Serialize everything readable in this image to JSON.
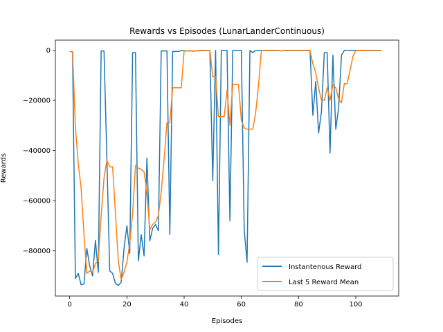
{
  "chart_data": {
    "type": "line",
    "title": "Rewards vs Episodes (LunarLanderContinuous)",
    "xlabel": "Episodes",
    "ylabel": "Rewards",
    "xlim": [
      -5,
      115
    ],
    "ylim": [
      -98000,
      4000
    ],
    "xticks": [
      0,
      20,
      40,
      60,
      80,
      100
    ],
    "yticks": [
      -80000,
      -60000,
      -40000,
      -20000,
      0
    ],
    "legend_position": "lower right",
    "grid": false,
    "series": [
      {
        "name": "Instantenous Reward",
        "color": "#1f77b4",
        "x": [
          0,
          1,
          2,
          3,
          4,
          5,
          6,
          7,
          8,
          9,
          10,
          11,
          12,
          13,
          14,
          15,
          16,
          17,
          18,
          19,
          20,
          21,
          22,
          23,
          24,
          25,
          26,
          27,
          28,
          29,
          30,
          31,
          32,
          33,
          34,
          35,
          36,
          37,
          38,
          39,
          40,
          41,
          42,
          43,
          44,
          45,
          46,
          47,
          48,
          49,
          50,
          51,
          52,
          53,
          54,
          55,
          56,
          57,
          58,
          59,
          60,
          61,
          62,
          63,
          64,
          65,
          66,
          67,
          68,
          69,
          70,
          71,
          72,
          73,
          74,
          75,
          76,
          77,
          78,
          79,
          80,
          81,
          82,
          83,
          84,
          85,
          86,
          87,
          88,
          89,
          90,
          91,
          92,
          93,
          94,
          95,
          96,
          97,
          98,
          99,
          100,
          101,
          102,
          103,
          104,
          105,
          106,
          107,
          108,
          109
        ],
        "y": [
          -500,
          -700,
          -91000,
          -89000,
          -93500,
          -93200,
          -79000,
          -86000,
          -90000,
          -75800,
          -88600,
          -300,
          -300,
          -43000,
          -88000,
          -89000,
          -93000,
          -93800,
          -92500,
          -79000,
          -70000,
          -81000,
          -1000,
          -1000,
          -84000,
          -73500,
          -82000,
          -43000,
          -76000,
          -71000,
          -69500,
          -72000,
          -300,
          -300,
          -300,
          -73500,
          -500,
          -500,
          -500,
          -200,
          -200,
          -300,
          -200,
          -400,
          -300,
          -200,
          -100,
          -100,
          -100,
          -200,
          -52000,
          -100,
          -81500,
          -100,
          -100,
          -100,
          -68000,
          -100,
          -100,
          -100,
          -100,
          -71500,
          -84500,
          -100,
          -1000,
          -100,
          -100,
          -100,
          -100,
          -100,
          -100,
          -100,
          -100,
          -100,
          -300,
          -100,
          -100,
          -100,
          -100,
          -100,
          -100,
          -100,
          -100,
          -100,
          -100,
          -26000,
          -12500,
          -33000,
          -24500,
          -1000,
          -1000,
          -41000,
          -2000,
          -31500,
          -23000,
          -2000,
          -100,
          -100,
          -100,
          -100,
          -100,
          -100,
          -100,
          -100,
          -100,
          -100,
          -100,
          -100,
          -100,
          -100
        ]
      },
      {
        "name": "Last 5 Reward Mean",
        "color": "#ff7f0e",
        "x": [
          0,
          1,
          2,
          3,
          4,
          5,
          6,
          7,
          8,
          9,
          10,
          11,
          12,
          13,
          14,
          15,
          16,
          17,
          18,
          19,
          20,
          21,
          22,
          23,
          24,
          25,
          26,
          27,
          28,
          29,
          30,
          31,
          32,
          33,
          34,
          35,
          36,
          37,
          38,
          39,
          40,
          41,
          42,
          43,
          44,
          45,
          46,
          47,
          48,
          49,
          50,
          51,
          52,
          53,
          54,
          55,
          56,
          57,
          58,
          59,
          60,
          61,
          62,
          63,
          64,
          65,
          66,
          67,
          68,
          69,
          70,
          71,
          72,
          73,
          74,
          75,
          76,
          77,
          78,
          79,
          80,
          81,
          82,
          83,
          84,
          85,
          86,
          87,
          88,
          89,
          90,
          91,
          92,
          93,
          94,
          95,
          96,
          97,
          98,
          99,
          100,
          101,
          102,
          103,
          104,
          105,
          106,
          107,
          108,
          109
        ],
        "y": [
          -500,
          -600,
          -30700,
          -45300,
          -55000,
          -73400,
          -89000,
          -88000,
          -88500,
          -85000,
          -84000,
          -66000,
          -51000,
          -44000,
          -46500,
          -46500,
          -65000,
          -84000,
          -91500,
          -88500,
          -84500,
          -77000,
          -65000,
          -46000,
          -47000,
          -47500,
          -48500,
          -57000,
          -71500,
          -69500,
          -68500,
          -66000,
          -56500,
          -43500,
          -29000,
          -29000,
          -15000,
          -15000,
          -15000,
          -15000,
          -300,
          -300,
          -300,
          -300,
          -300,
          -300,
          -200,
          -200,
          -100,
          -100,
          -10500,
          -10500,
          -26500,
          -26500,
          -26500,
          -16000,
          -30000,
          -13700,
          -13700,
          -13700,
          -28000,
          -31000,
          -31500,
          -31500,
          -31500,
          -25000,
          -14000,
          -200,
          -200,
          -200,
          -200,
          -200,
          -200,
          -200,
          -200,
          -200,
          -200,
          -200,
          -200,
          -200,
          -200,
          -200,
          -200,
          -200,
          -200,
          -5500,
          -9000,
          -15000,
          -20000,
          -20000,
          -15000,
          -20000,
          -14000,
          -15000,
          -19500,
          -21000,
          -13300,
          -13300,
          -8000,
          -2500,
          -200,
          -200,
          -200,
          -200,
          -200,
          -200,
          -200,
          -200,
          -200,
          -200
        ]
      }
    ]
  }
}
